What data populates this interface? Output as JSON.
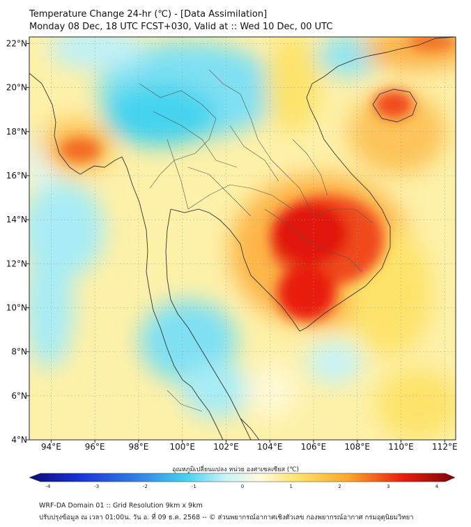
{
  "header": {
    "title_line1": "Temperature Change 24-hr (℃) - [Data Assimilation]",
    "title_line2": "Monday 08 Dec, 18 UTC FCST+030, Valid at :: Wed 10 Dec, 00 UTC"
  },
  "map": {
    "lon_range": [
      93,
      112.5
    ],
    "lat_range": [
      4,
      22.3
    ],
    "x_ticks": [
      {
        "value": 94,
        "label": "94°E"
      },
      {
        "value": 96,
        "label": "96°E"
      },
      {
        "value": 98,
        "label": "98°E"
      },
      {
        "value": 100,
        "label": "100°E"
      },
      {
        "value": 102,
        "label": "102°E"
      },
      {
        "value": 104,
        "label": "104°E"
      },
      {
        "value": 106,
        "label": "106°E"
      },
      {
        "value": 108,
        "label": "108°E"
      },
      {
        "value": 110,
        "label": "110°E"
      },
      {
        "value": 112,
        "label": "112°E"
      }
    ],
    "y_ticks": [
      {
        "value": 22,
        "label": "22°N"
      },
      {
        "value": 20,
        "label": "20°N"
      },
      {
        "value": 18,
        "label": "18°N"
      },
      {
        "value": 16,
        "label": "16°N"
      },
      {
        "value": 14,
        "label": "14°N"
      },
      {
        "value": 12,
        "label": "12°N"
      },
      {
        "value": 10,
        "label": "10°N"
      },
      {
        "value": 8,
        "label": "8°N"
      },
      {
        "value": 6,
        "label": "6°N"
      },
      {
        "value": 4,
        "label": "4°N"
      }
    ],
    "colors": {
      "strong_warm": "#e81c0c",
      "warm": "#fca62a",
      "mild_warm": "#fde36a",
      "neutral": "#fff8d2",
      "mild_cool": "#a8ecf5",
      "cool": "#45d3ef",
      "coast": "#333333"
    }
  },
  "colorbar": {
    "title": "อุณหภูมิเปลี่ยนแปลง หน่วย องศาเซลเซียส (℃)",
    "ticks": [
      "-4",
      "-3",
      "-2",
      "-1",
      "0",
      "1",
      "2",
      "3",
      "4"
    ],
    "stops": [
      "#0b0b7a",
      "#1a33d8",
      "#2f7de8",
      "#45d3ef",
      "#c6f3f7",
      "#fffbe0",
      "#fde36a",
      "#fca62a",
      "#e81c0c",
      "#7a0508"
    ]
  },
  "footer": {
    "line1": "WRF-DA Domain 01 :: Grid Resolution 9km x 9km",
    "line2": "ปรับปรุงข้อมูล ณ เวลา 01:00น. วัน อ. ที่ 09 ธ.ค. 2568 -- © ส่วนพยากรณ์อากาศเชิงตัวเลข กองพยากรณ์อากาศ กรมอุตุนิยมวิทยา"
  }
}
